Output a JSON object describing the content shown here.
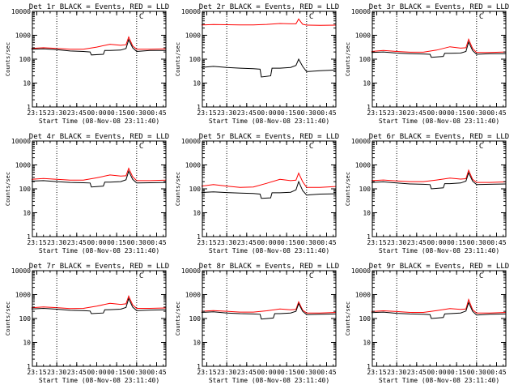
{
  "common": {
    "xlabel": "Start Time (08-Nov-08 23:11:40)",
    "ylabel": "Counts/sec",
    "x_tick_labels": [
      "23:15",
      "23:30",
      "23:45",
      "00:00",
      "00:15",
      "00:30",
      "00:45"
    ],
    "y_tick_labels": [
      "1",
      "10",
      "100",
      "1000",
      "10000"
    ],
    "corner_mark": "C",
    "series_colors": {
      "events": "#000000",
      "lld": "#ff0000"
    }
  },
  "chart_data": [
    {
      "type": "line",
      "title": "Det 1r BLACK = Events, RED = LLD",
      "yscale": "log",
      "ylim": [
        1,
        10000
      ],
      "x_range_minutes": [
        "23:11:40",
        "00:52:00"
      ],
      "vlines": [
        "23:30",
        "00:30"
      ],
      "series": [
        {
          "color": "#000000",
          "x": [
            "23:11",
            "23:20",
            "23:30",
            "23:40",
            "23:50",
            "23:55",
            "23:56",
            "00:05",
            "00:06",
            "00:10",
            "00:18",
            "00:22",
            "00:24",
            "00:27",
            "00:30",
            "00:40",
            "00:52"
          ],
          "values": [
            260,
            270,
            250,
            220,
            210,
            200,
            150,
            160,
            230,
            230,
            240,
            280,
            650,
            300,
            210,
            230,
            230
          ]
        },
        {
          "color": "#ff0000",
          "x": [
            "23:11",
            "23:20",
            "23:30",
            "23:40",
            "23:50",
            "00:00",
            "00:10",
            "00:18",
            "00:22",
            "00:24",
            "00:27",
            "00:30",
            "00:40",
            "00:52"
          ],
          "values": [
            280,
            300,
            280,
            260,
            260,
            320,
            420,
            380,
            400,
            850,
            360,
            260,
            260,
            270
          ]
        }
      ]
    },
    {
      "type": "line",
      "title": "Det 2r BLACK = Events, RED = LLD",
      "yscale": "log",
      "ylim": [
        1,
        10000
      ],
      "x_range_minutes": [
        "23:11:40",
        "00:52:00"
      ],
      "vlines": [
        "23:30",
        "00:30"
      ],
      "series": [
        {
          "color": "#000000",
          "x": [
            "23:11",
            "23:20",
            "23:30",
            "23:40",
            "23:50",
            "23:55",
            "23:56",
            "00:03",
            "00:04",
            "00:10",
            "00:18",
            "00:22",
            "00:24",
            "00:27",
            "00:30",
            "00:40",
            "00:52"
          ],
          "values": [
            45,
            50,
            45,
            42,
            40,
            38,
            18,
            20,
            42,
            42,
            45,
            55,
            100,
            50,
            30,
            33,
            35
          ]
        },
        {
          "color": "#ff0000",
          "x": [
            "23:11",
            "23:20",
            "23:30",
            "23:40",
            "23:50",
            "00:00",
            "00:10",
            "00:18",
            "00:22",
            "00:24",
            "00:27",
            "00:30",
            "00:40",
            "00:52"
          ],
          "values": [
            2700,
            2800,
            2750,
            2700,
            2700,
            2850,
            3100,
            3000,
            3000,
            4800,
            2900,
            2650,
            2600,
            2650
          ]
        }
      ]
    },
    {
      "type": "line",
      "title": "Det 3r BLACK = Events, RED = LLD",
      "yscale": "log",
      "ylim": [
        1,
        10000
      ],
      "x_range_minutes": [
        "23:11:40",
        "00:52:00"
      ],
      "vlines": [
        "23:30",
        "00:30"
      ],
      "series": [
        {
          "color": "#000000",
          "x": [
            "23:11",
            "23:20",
            "23:30",
            "23:40",
            "23:50",
            "23:55",
            "23:56",
            "00:05",
            "00:06",
            "00:10",
            "00:18",
            "00:22",
            "00:24",
            "00:27",
            "00:30",
            "00:40",
            "00:52"
          ],
          "values": [
            190,
            200,
            180,
            170,
            165,
            160,
            120,
            130,
            175,
            175,
            180,
            210,
            520,
            230,
            160,
            170,
            170
          ]
        },
        {
          "color": "#ff0000",
          "x": [
            "23:11",
            "23:20",
            "23:30",
            "23:40",
            "23:50",
            "00:00",
            "00:10",
            "00:18",
            "00:22",
            "00:24",
            "00:27",
            "00:30",
            "00:40",
            "00:52"
          ],
          "values": [
            210,
            230,
            210,
            195,
            195,
            240,
            330,
            290,
            300,
            680,
            280,
            190,
            190,
            200
          ]
        }
      ]
    },
    {
      "type": "line",
      "title": "Det 4r BLACK = Events, RED = LLD",
      "yscale": "log",
      "ylim": [
        1,
        10000
      ],
      "x_range_minutes": [
        "23:11:40",
        "00:52:00"
      ],
      "vlines": [
        "23:30",
        "00:30"
      ],
      "series": [
        {
          "color": "#000000",
          "x": [
            "23:11",
            "23:20",
            "23:30",
            "23:40",
            "23:50",
            "23:55",
            "23:56",
            "00:05",
            "00:06",
            "00:10",
            "00:18",
            "00:22",
            "00:24",
            "00:27",
            "00:30",
            "00:40",
            "00:52"
          ],
          "values": [
            210,
            220,
            200,
            185,
            180,
            175,
            120,
            130,
            190,
            190,
            200,
            240,
            550,
            250,
            175,
            180,
            185
          ]
        },
        {
          "color": "#ff0000",
          "x": [
            "23:11",
            "23:20",
            "23:30",
            "23:40",
            "23:50",
            "00:00",
            "00:10",
            "00:18",
            "00:22",
            "00:24",
            "00:27",
            "00:30",
            "00:40",
            "00:52"
          ],
          "values": [
            250,
            270,
            250,
            230,
            230,
            290,
            380,
            340,
            350,
            720,
            320,
            220,
            220,
            230
          ]
        }
      ]
    },
    {
      "type": "line",
      "title": "Det 5r BLACK = Events, RED = LLD",
      "yscale": "log",
      "ylim": [
        1,
        10000
      ],
      "x_range_minutes": [
        "23:11:40",
        "00:52:00"
      ],
      "vlines": [
        "23:30",
        "00:30"
      ],
      "series": [
        {
          "color": "#000000",
          "x": [
            "23:11",
            "23:20",
            "23:30",
            "23:40",
            "23:50",
            "23:55",
            "23:56",
            "00:03",
            "00:04",
            "00:10",
            "00:18",
            "00:22",
            "00:24",
            "00:27",
            "00:30",
            "00:40",
            "00:52"
          ],
          "values": [
            70,
            75,
            70,
            66,
            64,
            60,
            40,
            42,
            68,
            68,
            72,
            90,
            200,
            85,
            55,
            60,
            62
          ]
        },
        {
          "color": "#ff0000",
          "x": [
            "23:11",
            "23:20",
            "23:30",
            "23:40",
            "23:50",
            "00:00",
            "00:10",
            "00:18",
            "00:22",
            "00:24",
            "00:27",
            "00:30",
            "00:40",
            "00:52"
          ],
          "values": [
            130,
            150,
            130,
            115,
            120,
            170,
            250,
            220,
            230,
            450,
            200,
            115,
            115,
            125
          ]
        }
      ]
    },
    {
      "type": "line",
      "title": "Det 6r BLACK = Events, RED = LLD",
      "yscale": "log",
      "ylim": [
        1,
        10000
      ],
      "x_range_minutes": [
        "23:11:40",
        "00:52:00"
      ],
      "vlines": [
        "23:30",
        "00:30"
      ],
      "series": [
        {
          "color": "#000000",
          "x": [
            "23:11",
            "23:20",
            "23:30",
            "23:40",
            "23:50",
            "23:55",
            "23:56",
            "00:05",
            "00:06",
            "00:10",
            "00:18",
            "00:22",
            "00:24",
            "00:27",
            "00:30",
            "00:40",
            "00:52"
          ],
          "values": [
            185,
            195,
            175,
            160,
            155,
            150,
            100,
            110,
            165,
            165,
            175,
            210,
            470,
            210,
            150,
            155,
            160
          ]
        },
        {
          "color": "#ff0000",
          "x": [
            "23:11",
            "23:20",
            "23:30",
            "23:40",
            "23:50",
            "00:00",
            "00:10",
            "00:18",
            "00:22",
            "00:24",
            "00:27",
            "00:30",
            "00:40",
            "00:52"
          ],
          "values": [
            220,
            235,
            215,
            200,
            200,
            235,
            280,
            255,
            265,
            600,
            250,
            185,
            185,
            195
          ]
        }
      ]
    },
    {
      "type": "line",
      "title": "Det 7r BLACK = Events, RED = LLD",
      "yscale": "log",
      "ylim": [
        1,
        10000
      ],
      "x_range_minutes": [
        "23:11:40",
        "00:52:00"
      ],
      "vlines": [
        "23:30",
        "00:30"
      ],
      "series": [
        {
          "color": "#000000",
          "x": [
            "23:11",
            "23:20",
            "23:30",
            "23:40",
            "23:50",
            "23:55",
            "23:56",
            "00:05",
            "00:06",
            "00:10",
            "00:18",
            "00:22",
            "00:24",
            "00:27",
            "00:30",
            "00:40",
            "00:52"
          ],
          "values": [
            250,
            265,
            245,
            220,
            215,
            205,
            160,
            170,
            230,
            235,
            245,
            290,
            680,
            300,
            215,
            225,
            230
          ]
        },
        {
          "color": "#ff0000",
          "x": [
            "23:11",
            "23:20",
            "23:30",
            "23:40",
            "23:50",
            "00:00",
            "00:10",
            "00:18",
            "00:22",
            "00:24",
            "00:27",
            "00:30",
            "00:40",
            "00:52"
          ],
          "values": [
            280,
            305,
            285,
            260,
            265,
            330,
            430,
            390,
            410,
            870,
            370,
            265,
            265,
            275
          ]
        }
      ]
    },
    {
      "type": "line",
      "title": "Det 8r BLACK = Events, RED = LLD",
      "yscale": "log",
      "ylim": [
        1,
        10000
      ],
      "x_range_minutes": [
        "23:11:40",
        "00:52:00"
      ],
      "vlines": [
        "23:30",
        "00:30"
      ],
      "series": [
        {
          "color": "#000000",
          "x": [
            "23:11",
            "23:20",
            "23:30",
            "23:40",
            "23:50",
            "23:55",
            "23:56",
            "00:05",
            "00:06",
            "00:10",
            "00:18",
            "00:22",
            "00:24",
            "00:27",
            "00:30",
            "00:40",
            "00:52"
          ],
          "values": [
            180,
            190,
            170,
            160,
            155,
            150,
            95,
            105,
            160,
            160,
            170,
            200,
            420,
            200,
            145,
            150,
            155
          ]
        },
        {
          "color": "#ff0000",
          "x": [
            "23:11",
            "23:20",
            "23:30",
            "23:40",
            "23:50",
            "00:00",
            "00:10",
            "00:18",
            "00:22",
            "00:24",
            "00:27",
            "00:30",
            "00:40",
            "00:52"
          ],
          "values": [
            200,
            215,
            200,
            185,
            185,
            210,
            250,
            230,
            240,
            500,
            225,
            170,
            170,
            180
          ]
        }
      ]
    },
    {
      "type": "line",
      "title": "Det 9r BLACK = Events, RED = LLD",
      "yscale": "log",
      "ylim": [
        1,
        10000
      ],
      "x_range_minutes": [
        "23:11:40",
        "00:52:00"
      ],
      "vlines": [
        "23:30",
        "00:30"
      ],
      "series": [
        {
          "color": "#000000",
          "x": [
            "23:11",
            "23:20",
            "23:30",
            "23:40",
            "23:50",
            "23:55",
            "23:56",
            "00:05",
            "00:06",
            "00:10",
            "00:18",
            "00:22",
            "00:24",
            "00:27",
            "00:30",
            "00:40",
            "00:52"
          ],
          "values": [
            175,
            185,
            165,
            155,
            150,
            145,
            100,
            110,
            155,
            160,
            170,
            205,
            460,
            200,
            140,
            150,
            155
          ]
        },
        {
          "color": "#ff0000",
          "x": [
            "23:11",
            "23:20",
            "23:30",
            "23:40",
            "23:50",
            "00:00",
            "00:10",
            "00:18",
            "00:22",
            "00:24",
            "00:27",
            "00:30",
            "00:40",
            "00:52"
          ],
          "values": [
            195,
            210,
            195,
            180,
            180,
            215,
            260,
            240,
            250,
            620,
            235,
            170,
            170,
            180
          ]
        }
      ]
    }
  ]
}
